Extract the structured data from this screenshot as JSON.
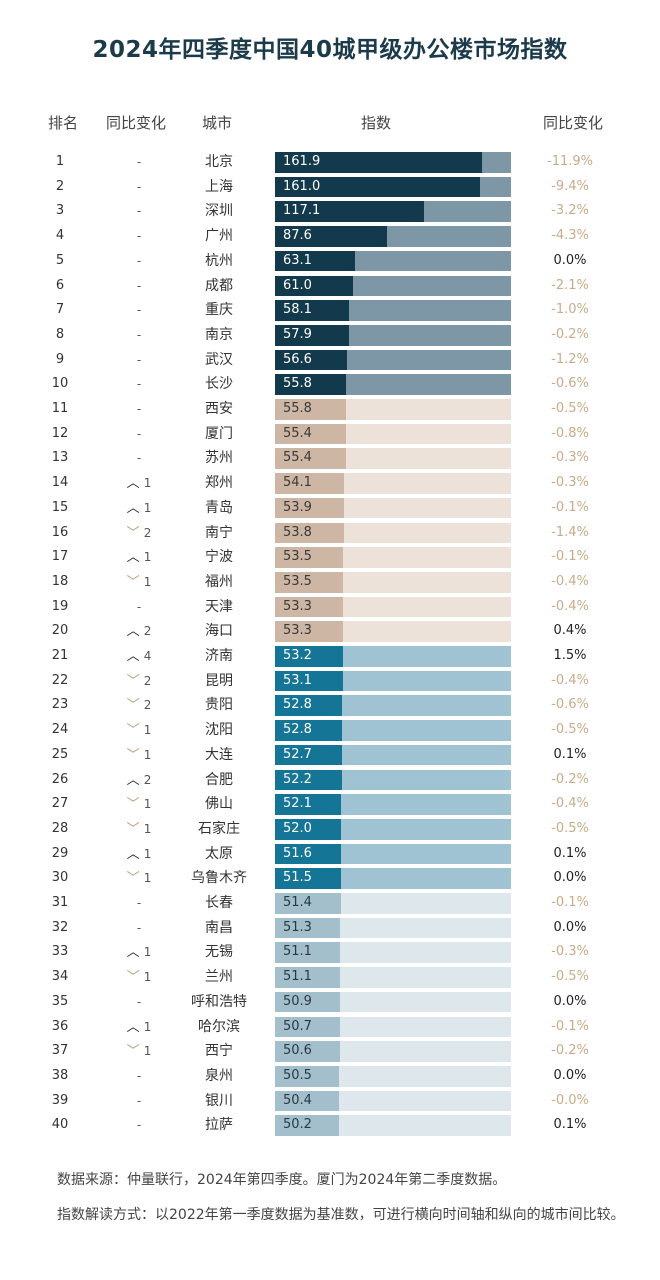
{
  "title": "2024年四季度中国40城甲级办公楼市场指数",
  "headers": {
    "rank": "排名",
    "change": "同比变化",
    "city": "城市",
    "index": "指数",
    "yoy": "同比变化"
  },
  "colors": {
    "tier1_fill": "#12394c",
    "tier1_track": "#7e97a6",
    "tier2_fill": "#cdb6a3",
    "tier2_track": "#ece2da",
    "tier3_fill": "#147597",
    "tier3_track": "#9fc3d3",
    "tier4_fill": "#a3bfcc",
    "tier4_track": "#dde7ec"
  },
  "chart_data": {
    "type": "bar",
    "title": "2024年四季度中国40城甲级办公楼市场指数",
    "xlim": [
      0,
      185
    ],
    "rows": [
      {
        "rank": "1",
        "change": "-",
        "city": "北京",
        "value": 161.9,
        "yoy": "-11.9%",
        "tier": 1
      },
      {
        "rank": "2",
        "change": "-",
        "city": "上海",
        "value": 161.0,
        "yoy": "-9.4%",
        "tier": 1
      },
      {
        "rank": "3",
        "change": "-",
        "city": "深圳",
        "value": 117.1,
        "yoy": "-3.2%",
        "tier": 1
      },
      {
        "rank": "4",
        "change": "-",
        "city": "广州",
        "value": 87.6,
        "yoy": "-4.3%",
        "tier": 1
      },
      {
        "rank": "5",
        "change": "-",
        "city": "杭州",
        "value": 63.1,
        "yoy": "0.0%",
        "tier": 1
      },
      {
        "rank": "6",
        "change": "-",
        "city": "成都",
        "value": 61.0,
        "yoy": "-2.1%",
        "tier": 1
      },
      {
        "rank": "7",
        "change": "-",
        "city": "重庆",
        "value": 58.1,
        "yoy": "-1.0%",
        "tier": 1
      },
      {
        "rank": "8",
        "change": "-",
        "city": "南京",
        "value": 57.9,
        "yoy": "-0.2%",
        "tier": 1
      },
      {
        "rank": "9",
        "change": "-",
        "city": "武汉",
        "value": 56.6,
        "yoy": "-1.2%",
        "tier": 1
      },
      {
        "rank": "10",
        "change": "-",
        "city": "长沙",
        "value": 55.8,
        "yoy": "-0.6%",
        "tier": 1
      },
      {
        "rank": "11",
        "change": "-",
        "city": "西安",
        "value": 55.8,
        "yoy": "-0.5%",
        "tier": 2
      },
      {
        "rank": "12",
        "change": "-",
        "city": "厦门",
        "value": 55.4,
        "yoy": "-0.8%",
        "tier": 2
      },
      {
        "rank": "13",
        "change": "-",
        "city": "苏州",
        "value": 55.4,
        "yoy": "-0.3%",
        "tier": 2
      },
      {
        "rank": "14",
        "change": "1",
        "dir": "up",
        "city": "郑州",
        "value": 54.1,
        "yoy": "-0.3%",
        "tier": 2
      },
      {
        "rank": "15",
        "change": "1",
        "dir": "up",
        "city": "青岛",
        "value": 53.9,
        "yoy": "-0.1%",
        "tier": 2
      },
      {
        "rank": "16",
        "change": "2",
        "dir": "down",
        "city": "南宁",
        "value": 53.8,
        "yoy": "-1.4%",
        "tier": 2
      },
      {
        "rank": "17",
        "change": "1",
        "dir": "up",
        "city": "宁波",
        "value": 53.5,
        "yoy": "-0.1%",
        "tier": 2
      },
      {
        "rank": "18",
        "change": "1",
        "dir": "down",
        "city": "福州",
        "value": 53.5,
        "yoy": "-0.4%",
        "tier": 2
      },
      {
        "rank": "19",
        "change": "-",
        "city": "天津",
        "value": 53.3,
        "yoy": "-0.4%",
        "tier": 2
      },
      {
        "rank": "20",
        "change": "2",
        "dir": "up",
        "city": "海口",
        "value": 53.3,
        "yoy": "0.4%",
        "tier": 2
      },
      {
        "rank": "21",
        "change": "4",
        "dir": "up",
        "city": "济南",
        "value": 53.2,
        "yoy": "1.5%",
        "tier": 3
      },
      {
        "rank": "22",
        "change": "2",
        "dir": "down",
        "city": "昆明",
        "value": 53.1,
        "yoy": "-0.4%",
        "tier": 3
      },
      {
        "rank": "23",
        "change": "2",
        "dir": "down",
        "city": "贵阳",
        "value": 52.8,
        "yoy": "-0.6%",
        "tier": 3
      },
      {
        "rank": "24",
        "change": "1",
        "dir": "down",
        "city": "沈阳",
        "value": 52.8,
        "yoy": "-0.5%",
        "tier": 3
      },
      {
        "rank": "25",
        "change": "1",
        "dir": "down",
        "city": "大连",
        "value": 52.7,
        "yoy": "0.1%",
        "tier": 3
      },
      {
        "rank": "26",
        "change": "2",
        "dir": "up",
        "city": "合肥",
        "value": 52.2,
        "yoy": "-0.2%",
        "tier": 3
      },
      {
        "rank": "27",
        "change": "1",
        "dir": "down",
        "city": "佛山",
        "value": 52.1,
        "yoy": "-0.4%",
        "tier": 3
      },
      {
        "rank": "28",
        "change": "1",
        "dir": "down",
        "city": "石家庄",
        "value": 52.0,
        "yoy": "-0.5%",
        "tier": 3
      },
      {
        "rank": "29",
        "change": "1",
        "dir": "up",
        "city": "太原",
        "value": 51.6,
        "yoy": "0.1%",
        "tier": 3
      },
      {
        "rank": "30",
        "change": "1",
        "dir": "down",
        "city": "乌鲁木齐",
        "value": 51.5,
        "yoy": "0.0%",
        "tier": 3
      },
      {
        "rank": "31",
        "change": "-",
        "city": "长春",
        "value": 51.4,
        "yoy": "-0.1%",
        "tier": 4
      },
      {
        "rank": "32",
        "change": "-",
        "city": "南昌",
        "value": 51.3,
        "yoy": "0.0%",
        "tier": 4
      },
      {
        "rank": "33",
        "change": "1",
        "dir": "up",
        "city": "无锡",
        "value": 51.1,
        "yoy": "-0.3%",
        "tier": 4
      },
      {
        "rank": "34",
        "change": "1",
        "dir": "down",
        "city": "兰州",
        "value": 51.1,
        "yoy": "-0.5%",
        "tier": 4
      },
      {
        "rank": "35",
        "change": "-",
        "city": "呼和浩特",
        "value": 50.9,
        "yoy": "0.0%",
        "tier": 4
      },
      {
        "rank": "36",
        "change": "1",
        "dir": "up",
        "city": "哈尔滨",
        "value": 50.7,
        "yoy": "-0.1%",
        "tier": 4
      },
      {
        "rank": "37",
        "change": "1",
        "dir": "down",
        "city": "西宁",
        "value": 50.6,
        "yoy": "-0.2%",
        "tier": 4
      },
      {
        "rank": "38",
        "change": "-",
        "city": "泉州",
        "value": 50.5,
        "yoy": "0.0%",
        "tier": 4
      },
      {
        "rank": "39",
        "change": "-",
        "city": "银川",
        "value": 50.4,
        "yoy": "-0.0%",
        "tier": 4
      },
      {
        "rank": "40",
        "change": "-",
        "city": "拉萨",
        "value": 50.2,
        "yoy": "0.1%",
        "tier": 4
      }
    ]
  },
  "footer": {
    "source": "数据来源：仲量联行，2024年第四季度。厦门为2024年第二季度数据。",
    "note": "指数解读方式：以2022年第一季度数据为基准数，可进行横向时间轴和纵向的城市间比较。"
  }
}
